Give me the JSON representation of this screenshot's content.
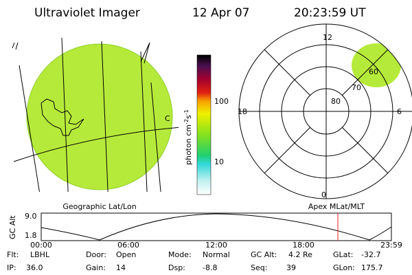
{
  "header": {
    "instrument": "Ultraviolet Imager",
    "date": "12 Apr 07",
    "time": "20:23:59 UT"
  },
  "colorbar": {
    "label": {
      "unit": "photon cm",
      "exp1": "-2",
      "unit2": "s",
      "exp2": "-1"
    },
    "ticks": [
      "100",
      "10"
    ]
  },
  "globe": {
    "marker": "C"
  },
  "polar": {
    "mlt_labels": [
      "12",
      "18",
      "6",
      "0"
    ],
    "mlat_labels": [
      "80",
      "70",
      "60"
    ]
  },
  "orbit": {
    "left_title": "Geographic Lat/Lon",
    "right_title": "Apex MLat/MLT",
    "ylabel": "GC Alt",
    "yticks": [
      "9.0",
      "1.8"
    ],
    "xticks": [
      "00:00",
      "06:00",
      "12:00",
      "18:00",
      "23:59"
    ]
  },
  "info": [
    [
      {
        "label": "Flt:",
        "value": "LBHL"
      },
      {
        "label": "Door:",
        "value": "Open"
      },
      {
        "label": "Mode:",
        "value": "Normal"
      },
      {
        "label": "GC Alt:",
        "value": "4.2 Re"
      },
      {
        "label": "GLat:",
        "value": "-32.7"
      }
    ],
    [
      {
        "label": "IP:",
        "value": "36.0"
      },
      {
        "label": "Gain:",
        "value": "14"
      },
      {
        "label": "Dsp:",
        "value": "-8.8"
      },
      {
        "label": "Seq:",
        "value": "39"
      },
      {
        "label": "GLon:",
        "value": "175.7"
      }
    ]
  ]
}
